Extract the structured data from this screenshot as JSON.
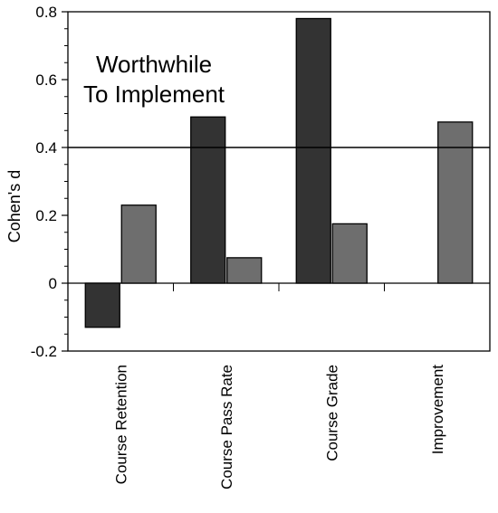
{
  "chart_data": {
    "type": "bar",
    "ylabel": "Cohen's d",
    "xlabel": "",
    "title": "",
    "ylim": [
      -0.2,
      0.8
    ],
    "yticks": [
      -0.2,
      0,
      0.2,
      0.4,
      0.6,
      0.8
    ],
    "ytick_labels": [
      "-0.2",
      "0",
      "0.2",
      "0.4",
      "0.6",
      "0.8"
    ],
    "reference_line": 0.4,
    "categories": [
      "Course Retention",
      "Course Pass Rate",
      "Course Grade",
      "Improvement"
    ],
    "series": [
      {
        "color": "#333333",
        "values": [
          -0.13,
          0.49,
          0.78,
          null
        ]
      },
      {
        "color": "#6e6e6e",
        "values": [
          0.23,
          0.075,
          0.175,
          0.475
        ]
      }
    ],
    "annotation": [
      "Worthwhile",
      "To Implement"
    ],
    "grid": false,
    "legend": "none"
  }
}
